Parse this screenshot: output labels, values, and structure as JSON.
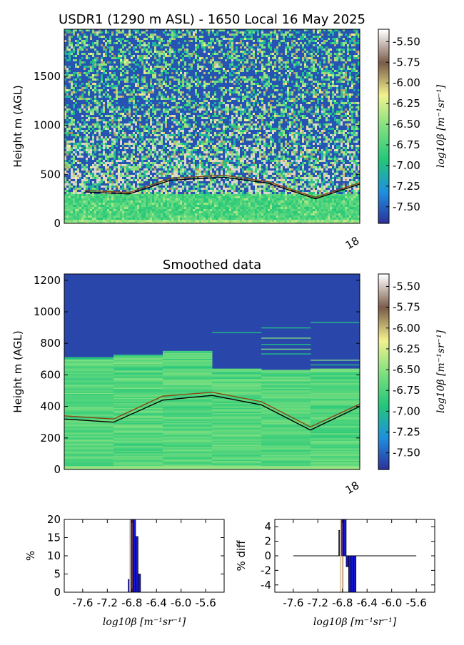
{
  "figure": {
    "title": "USDR1 (1290 m ASL) - 1650 Local 16 May 2025",
    "smoothed_title": "Smoothed data",
    "height_label": "Height m (AGL)",
    "colorbar_label": "log10β [m⁻¹sr⁻¹]",
    "x_tick": "18",
    "hist_xlabel": "log10β [m⁻¹sr⁻¹]",
    "hist_ylabel": "%",
    "diff_ylabel": "% diff"
  },
  "colorbar": {
    "colormap": [
      "#2d2e97",
      "#1e8fe0",
      "#22c77a",
      "#7fe07f",
      "#f3f28e",
      "#7a5a48",
      "#ffffff"
    ],
    "ticks": [
      "-5.50",
      "-5.75",
      "-6.00",
      "-6.25",
      "-6.50",
      "-6.75",
      "-7.00",
      "-7.25",
      "-7.50"
    ],
    "vmin": -7.7,
    "vmax": -5.35
  },
  "chart_data": [
    {
      "type": "heatmap",
      "title": "USDR1 (1290 m ASL) - 1650 Local 16 May 2025",
      "ylabel": "Height m (AGL)",
      "ylim": [
        0,
        1980
      ],
      "yticks": [
        0,
        500,
        1000,
        1500
      ],
      "xticks": [
        "18"
      ],
      "series": [
        {
          "name": "",
          "color": "#000000",
          "x": [
            0.07,
            0.22,
            0.36,
            0.54,
            0.69,
            0.85,
            1.0
          ],
          "y": [
            320,
            300,
            440,
            470,
            410,
            250,
            400
          ]
        },
        {
          "name": "",
          "color": "#8b4513",
          "x": [
            0.07,
            0.22,
            0.36,
            0.54,
            0.69,
            0.85,
            1.0
          ],
          "y": [
            335,
            315,
            460,
            490,
            425,
            265,
            415
          ]
        }
      ]
    },
    {
      "type": "heatmap",
      "title": "Smoothed data",
      "ylabel": "Height m (AGL)",
      "ylim": [
        0,
        1240
      ],
      "yticks": [
        0,
        200,
        400,
        600,
        800,
        1000,
        1200
      ],
      "xticks": [
        "18"
      ],
      "columns": [
        {
          "top": 710,
          "layers": [
            700,
            690,
            570,
            480
          ]
        },
        {
          "top": 725,
          "layers": [
            720,
            670,
            630,
            570
          ]
        },
        {
          "top": 745,
          "layers": [
            740,
            660,
            640,
            610
          ]
        },
        {
          "top": 640,
          "layers": [
            865,
            630,
            610,
            540
          ]
        },
        {
          "top": 630,
          "layers": [
            895,
            830,
            790,
            760,
            730,
            560
          ]
        },
        {
          "top": 635,
          "layers": [
            930,
            690,
            660,
            620
          ]
        }
      ],
      "series": [
        {
          "name": "",
          "color": "#000000",
          "x": [
            0,
            0.167,
            0.333,
            0.5,
            0.667,
            0.833,
            1.0
          ],
          "y": [
            320,
            300,
            440,
            470,
            410,
            250,
            400
          ]
        },
        {
          "name": "",
          "color": "#8b4513",
          "x": [
            0,
            0.167,
            0.333,
            0.5,
            0.667,
            0.833,
            1.0
          ],
          "y": [
            340,
            320,
            465,
            490,
            430,
            270,
            415
          ]
        }
      ]
    },
    {
      "type": "bar",
      "xlabel": "log10β [m⁻¹sr⁻¹]",
      "ylabel": "%",
      "xlim": [
        -7.9,
        -5.3
      ],
      "ylim": [
        0,
        20
      ],
      "xticks": [
        "-7.6",
        "-7.2",
        "-6.8",
        "-6.4",
        "-6.0",
        "-5.6"
      ],
      "yticks": [
        0,
        5,
        10,
        15,
        20
      ],
      "bin_width": 0.04,
      "x": [
        -6.86,
        -6.82,
        -6.78,
        -6.74,
        -6.7
      ],
      "values": [
        3.5,
        20,
        20,
        15.3,
        5
      ]
    },
    {
      "type": "bar",
      "xlabel": "log10β [m⁻¹sr⁻¹]",
      "ylabel": "% diff",
      "xlim": [
        -7.9,
        -5.3
      ],
      "ylim": [
        -5,
        5
      ],
      "xticks": [
        "-7.6",
        "-7.2",
        "-6.8",
        "-6.4",
        "-6.0",
        "-5.6"
      ],
      "yticks": [
        -4,
        -2,
        0,
        2,
        4
      ],
      "bin_width": 0.04,
      "x": [
        -6.86,
        -6.82,
        -6.78,
        -6.74,
        -6.7,
        -6.66,
        -6.62
      ],
      "values": [
        3.5,
        5,
        5,
        -1.5,
        -5,
        -5,
        -5
      ],
      "zero_line_range": [
        -7.6,
        -5.6
      ]
    }
  ]
}
